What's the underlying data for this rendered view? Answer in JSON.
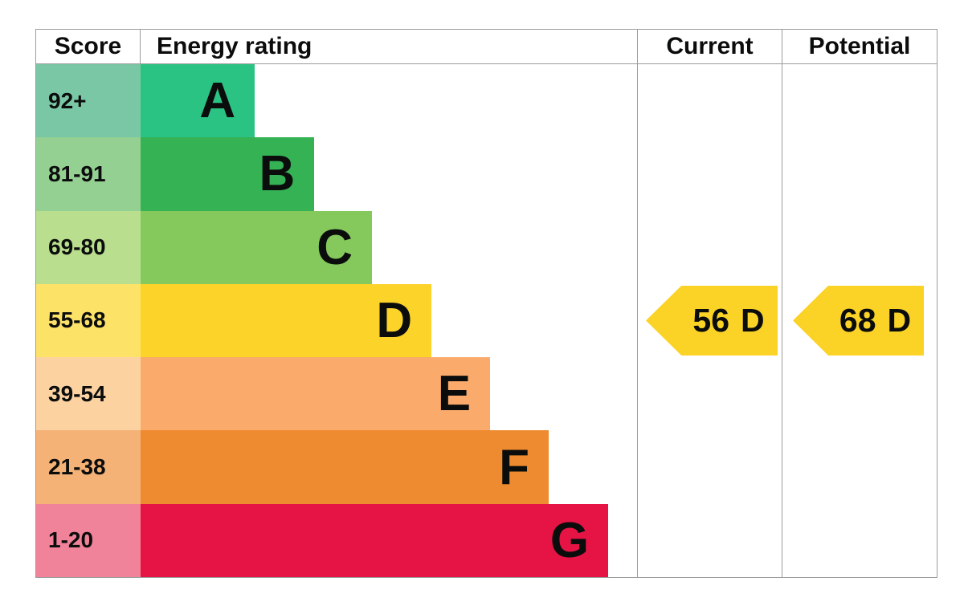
{
  "header": {
    "score": "Score",
    "energy_rating": "Energy rating",
    "current": "Current",
    "potential": "Potential"
  },
  "chart_data": {
    "type": "bar",
    "title": "EPC energy efficiency rating chart",
    "categories": [
      "A",
      "B",
      "C",
      "D",
      "E",
      "F",
      "G"
    ],
    "bands": [
      {
        "letter": "A",
        "score_range": "92+",
        "bar_color": "#2bc383",
        "score_bg": "#7ac7a6",
        "width_pct": 23.0
      },
      {
        "letter": "B",
        "score_range": "81-91",
        "bar_color": "#34b254",
        "score_bg": "#95d093",
        "width_pct": 35.0
      },
      {
        "letter": "C",
        "score_range": "69-80",
        "bar_color": "#85c95c",
        "score_bg": "#b8de8e",
        "width_pct": 46.6
      },
      {
        "letter": "D",
        "score_range": "55-68",
        "bar_color": "#fcd329",
        "score_bg": "#fde268",
        "width_pct": 58.6
      },
      {
        "letter": "E",
        "score_range": "39-54",
        "bar_color": "#faaa6b",
        "score_bg": "#fcd2a1",
        "width_pct": 70.4
      },
      {
        "letter": "F",
        "score_range": "21-38",
        "bar_color": "#ee8b30",
        "score_bg": "#f5b277",
        "width_pct": 82.2
      },
      {
        "letter": "G",
        "score_range": "1-20",
        "bar_color": "#e61444",
        "score_bg": "#f0839a",
        "width_pct": 94.2
      }
    ],
    "current": {
      "value": "56",
      "band": "D",
      "band_index": 3,
      "arrow_color": "#fbd226"
    },
    "potential": {
      "value": "68",
      "band": "D",
      "band_index": 3,
      "arrow_color": "#fbd226"
    }
  }
}
